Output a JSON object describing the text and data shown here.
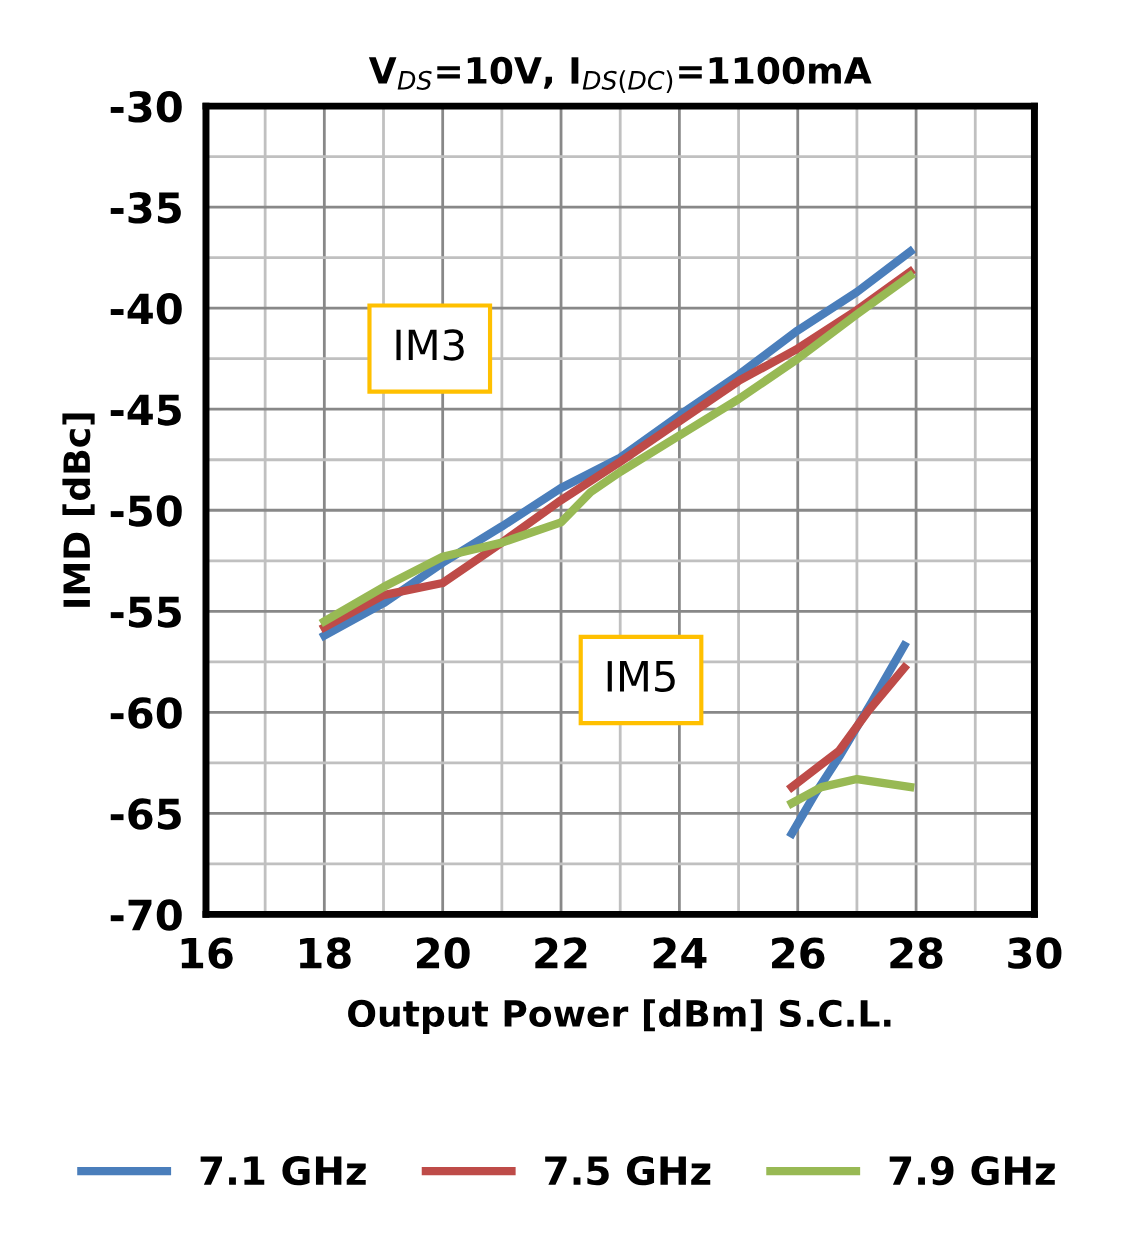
{
  "chart_data": {
    "type": "line",
    "title": "V$_{DS}$=10V, I$_{DS(DC)}$=1100mA",
    "xlabel": "Output Power [dBm] S.C.L.",
    "ylabel": "IMD [dBc]",
    "xlim": [
      16,
      30
    ],
    "xticks": [
      16,
      18,
      20,
      22,
      24,
      26,
      28,
      30
    ],
    "ylim": [
      -70,
      -30
    ],
    "yticks": [
      -70,
      -65,
      -60,
      -55,
      -50,
      -45,
      -40,
      -35,
      -30
    ],
    "grid": true,
    "legend": "bottom",
    "marker": "none",
    "line_style": "solid",
    "annotations": [
      "IM3",
      "IM5"
    ],
    "series": [
      {
        "name": "7.1 GHz",
        "color": "#4a7ebb",
        "x": [
          18,
          19,
          20,
          21,
          22,
          23,
          24,
          25,
          26,
          27,
          27.9
        ],
        "values": [
          -56.2,
          -54.6,
          -52.6,
          -50.8,
          -48.9,
          -47.4,
          -45.3,
          -43.3,
          -41.1,
          -39.2,
          -37.2
        ]
      },
      {
        "name": "7.5 GHz",
        "color": "#be4b48",
        "x": [
          18,
          19,
          20,
          21,
          22,
          23,
          24,
          25,
          26,
          27,
          27.9
        ],
        "values": [
          -55.8,
          -54.2,
          -53.6,
          -51.6,
          -49.5,
          -47.6,
          -45.6,
          -43.6,
          -42.0,
          -40.1,
          -38.2
        ]
      },
      {
        "name": "7.9 GHz",
        "color": "#98b954",
        "x": [
          18,
          19,
          20,
          21,
          22,
          22.5,
          23,
          24,
          25,
          26,
          27,
          27.9
        ],
        "values": [
          -55.5,
          -53.8,
          -52.3,
          -51.6,
          -50.6,
          -49.1,
          -48.1,
          -46.3,
          -44.5,
          -42.5,
          -40.3,
          -38.4
        ]
      },
      {
        "color": "#4a7ebb",
        "x": [
          25.9,
          26.3,
          26.7,
          27.25,
          27.8
        ],
        "values": [
          -66.0,
          -64.0,
          -62.2,
          -59.5,
          -56.7
        ]
      },
      {
        "color": "#be4b48",
        "x": [
          25.9,
          26.7,
          27.2,
          27.8
        ],
        "values": [
          -63.7,
          -61.9,
          -59.9,
          -57.8
        ]
      },
      {
        "color": "#98b954",
        "x": [
          25.9,
          26.4,
          27.0,
          27.9
        ],
        "values": [
          -64.5,
          -63.7,
          -63.3,
          -63.7
        ]
      }
    ]
  }
}
